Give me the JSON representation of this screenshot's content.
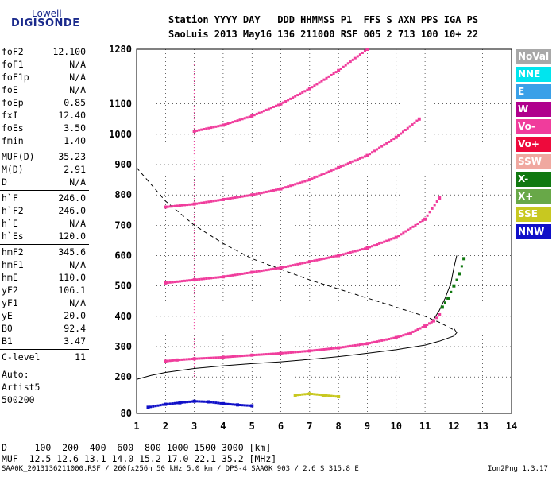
{
  "logo": {
    "line1": "Lowell",
    "line2": "DIGISONDE"
  },
  "header": {
    "line1": "Station YYYY DAY   DDD HHMMSS P1  FFS S AXN PPS IGA PS",
    "line2": "SaoLuis 2013 May16 136 211000 RSF 005 2 713 100 10+ 22"
  },
  "params": [
    {
      "name": "foF2",
      "value": "12.100"
    },
    {
      "name": "foF1",
      "value": "N/A"
    },
    {
      "name": "foF1p",
      "value": "N/A"
    },
    {
      "name": "foE",
      "value": "N/A"
    },
    {
      "name": "foEp",
      "value": "0.85"
    },
    {
      "name": "fxI",
      "value": "12.40"
    },
    {
      "name": "foEs",
      "value": "3.50"
    },
    {
      "name": "fmin",
      "value": "1.40"
    },
    {
      "name": "MUF(D)",
      "value": "35.23"
    },
    {
      "name": "M(D)",
      "value": "2.91"
    },
    {
      "name": "D",
      "value": "N/A"
    },
    {
      "name": "h`F",
      "value": "246.0"
    },
    {
      "name": "h`F2",
      "value": "246.0"
    },
    {
      "name": "h`E",
      "value": "N/A"
    },
    {
      "name": "h`Es",
      "value": "120.0"
    },
    {
      "name": "hmF2",
      "value": "345.6"
    },
    {
      "name": "hmF1",
      "value": "N/A"
    },
    {
      "name": "hmE",
      "value": "110.0"
    },
    {
      "name": "yF2",
      "value": "106.1"
    },
    {
      "name": "yF1",
      "value": "N/A"
    },
    {
      "name": "yE",
      "value": "20.0"
    },
    {
      "name": "B0",
      "value": "92.4"
    },
    {
      "name": "B1",
      "value": "3.47"
    },
    {
      "name": "C-level",
      "value": "11"
    }
  ],
  "auto": {
    "label": "Auto:",
    "artist": "Artist5",
    "version": "500200"
  },
  "legend": [
    {
      "label": "NoVal",
      "color": "#a8a8a8"
    },
    {
      "label": "NNE",
      "color": "#00e5ee"
    },
    {
      "label": "E",
      "color": "#3aa0e8"
    },
    {
      "label": "W",
      "color": "#b0008c"
    },
    {
      "label": "Vo-",
      "color": "#f03c9c"
    },
    {
      "label": "Vo+",
      "color": "#ee0a3c"
    },
    {
      "label": "SSW",
      "color": "#f0a8a0"
    },
    {
      "label": "X-",
      "color": "#107810"
    },
    {
      "label": "X+",
      "color": "#68a848"
    },
    {
      "label": "SSE",
      "color": "#c8c820"
    },
    {
      "label": "NNW",
      "color": "#1010c8"
    }
  ],
  "bottom": {
    "d_row": "D     100  200  400  600  800 1000 1500 3000 [km]",
    "muf_row": "MUF  12.5 12.6 13.1 14.0 15.2 17.0 22.1 35.2 [MHz]"
  },
  "footer": {
    "left": "SAA0K_2013136211000.RSF / 260fx256h 50 kHz 5.0 km / DPS-4 SAA0K 903 / 2.6 S 315.8 E",
    "right": "Ion2Png 1.3.17"
  },
  "chart_data": {
    "type": "scatter",
    "title": "",
    "xlabel": "",
    "ylabel": "",
    "xlim": [
      1,
      14
    ],
    "ylim": [
      80,
      1280
    ],
    "x_ticks": [
      1,
      2,
      3,
      4,
      5,
      6,
      7,
      8,
      9,
      10,
      11,
      12,
      13,
      14
    ],
    "y_ticks": [
      80,
      200,
      300,
      400,
      500,
      600,
      700,
      800,
      900,
      1000,
      1100,
      1280
    ],
    "series": [
      {
        "name": "Vo-",
        "color": "#f03c9c",
        "x": [
          2.0,
          2.4,
          3.0,
          4.0,
          5.0,
          6.0,
          7.0,
          8.0,
          9.0,
          10.0,
          10.5,
          11.0,
          11.3,
          11.5
        ],
        "y": [
          252,
          256,
          260,
          265,
          272,
          278,
          286,
          296,
          310,
          330,
          345,
          368,
          385,
          405
        ]
      },
      {
        "name": "Vo-",
        "color": "#f03c9c",
        "x": [
          2.0,
          3.0,
          4.0,
          5.0,
          6.0,
          7.0,
          8.0,
          9.0,
          10.0,
          11.0,
          11.5
        ],
        "y": [
          510,
          520,
          530,
          545,
          560,
          580,
          600,
          625,
          660,
          720,
          790
        ]
      },
      {
        "name": "Vo-",
        "color": "#f03c9c",
        "x": [
          2.0,
          3.0,
          4.0,
          5.0,
          6.0,
          7.0,
          8.0,
          9.0,
          10.0,
          10.8
        ],
        "y": [
          760,
          770,
          785,
          800,
          820,
          850,
          890,
          930,
          990,
          1050
        ]
      },
      {
        "name": "Vo-",
        "color": "#f03c9c",
        "x": [
          3.0,
          4.0,
          5.0,
          6.0,
          7.0,
          8.0,
          9.0
        ],
        "y": [
          1010,
          1030,
          1060,
          1100,
          1150,
          1210,
          1280
        ]
      },
      {
        "name": "X-",
        "color": "#107810",
        "x": [
          11.6,
          11.8,
          12.0,
          12.2,
          12.35
        ],
        "y": [
          430,
          460,
          500,
          540,
          590
        ]
      },
      {
        "name": "NNW",
        "color": "#1010c8",
        "x": [
          1.4,
          2.0,
          2.5,
          3.0,
          3.5,
          4.0,
          4.5,
          5.0
        ],
        "y": [
          100,
          110,
          115,
          120,
          118,
          112,
          108,
          105
        ]
      },
      {
        "name": "SSE",
        "color": "#c8c820",
        "x": [
          6.5,
          7.0,
          7.5,
          8.0
        ],
        "y": [
          140,
          145,
          140,
          135
        ]
      }
    ],
    "profile_curve": {
      "x": [
        1.0,
        1.5,
        2.0,
        3.0,
        4.0,
        5.0,
        6.0,
        7.0,
        8.0,
        9.0,
        10.0,
        11.0,
        11.5,
        12.0,
        12.1,
        12.0
      ],
      "y": [
        192,
        205,
        215,
        228,
        237,
        244,
        250,
        258,
        267,
        278,
        290,
        305,
        318,
        335,
        346,
        360
      ]
    },
    "trace_curve": {
      "x": [
        11.3,
        11.5,
        11.7,
        11.9,
        12.0,
        12.1
      ],
      "y": [
        390,
        420,
        460,
        510,
        560,
        600
      ]
    },
    "muf_curve": {
      "x": [
        1.0,
        2.0,
        3.0,
        4.0,
        5.0,
        6.0,
        7.0,
        8.0,
        9.0,
        10.0,
        11.0,
        11.5,
        12.0
      ],
      "y": [
        890,
        780,
        700,
        640,
        590,
        555,
        520,
        490,
        460,
        430,
        400,
        380,
        355
      ]
    }
  }
}
